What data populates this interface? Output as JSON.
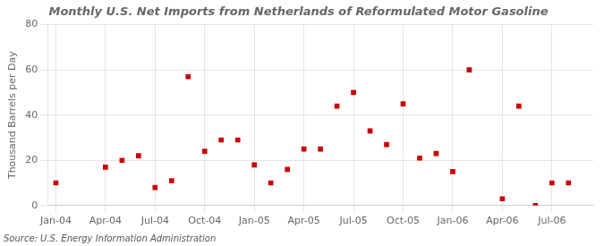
{
  "chart_data": {
    "type": "scatter",
    "title": "Monthly U.S. Net Imports from Netherlands of Reformulated Motor Gasoline",
    "ylabel": "Thousand Barrels per Day",
    "source": "Source: U.S. Energy Information Administration",
    "categories": [
      "Jan-04",
      null,
      null,
      "Apr-04",
      null,
      null,
      "Jul-04",
      null,
      null,
      "Oct-04",
      null,
      null,
      "Jan-05",
      null,
      null,
      "Apr-05",
      null,
      null,
      "Jul-05",
      null,
      null,
      "Oct-05",
      null,
      null,
      "Jan-06",
      null,
      null,
      "Apr-06",
      null,
      null,
      "Jul-06",
      null,
      null
    ],
    "values": [
      10,
      null,
      null,
      17,
      20,
      22,
      8,
      11,
      57,
      24,
      29,
      29,
      18,
      10,
      16,
      25,
      25,
      44,
      50,
      33,
      27,
      45,
      21,
      23,
      15,
      60,
      null,
      3,
      44,
      0,
      10,
      10,
      null
    ],
    "color": "#CC0000",
    "marker": "square",
    "ylim": [
      0,
      80
    ],
    "yticks": [
      0,
      20,
      40,
      60,
      80
    ],
    "grid": true
  }
}
